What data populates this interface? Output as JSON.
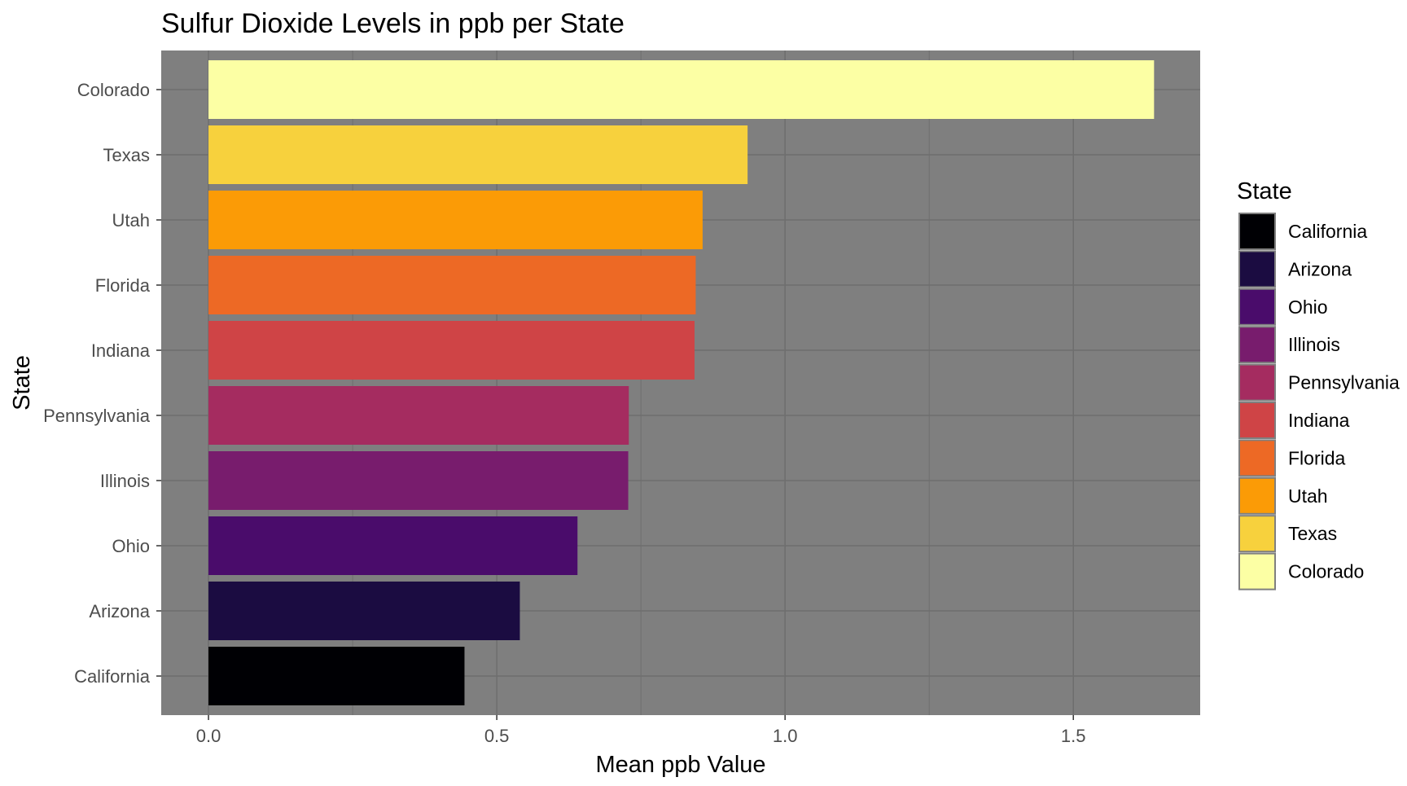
{
  "chart_data": {
    "type": "bar",
    "orientation": "horizontal",
    "title": "Sulfur Dioxide Levels in ppb per State",
    "xlabel": "Mean ppb Value",
    "ylabel": "State",
    "xlim": [
      -0.082,
      1.72
    ],
    "x_ticks": [
      0.0,
      0.5,
      1.0,
      1.5
    ],
    "x_tick_labels": [
      "0.0",
      "0.5",
      "1.0",
      "1.5"
    ],
    "grid": true,
    "panel_background": "#7f7f7f",
    "grid_color": "#6e6e6e",
    "categories": [
      "California",
      "Arizona",
      "Ohio",
      "Illinois",
      "Pennsylvania",
      "Indiana",
      "Florida",
      "Utah",
      "Texas",
      "Colorado"
    ],
    "values": [
      0.444,
      0.54,
      0.64,
      0.728,
      0.729,
      0.843,
      0.845,
      0.857,
      0.935,
      1.64
    ],
    "colors": [
      "#000004",
      "#1b0c41",
      "#4a0c6b",
      "#781c6d",
      "#a52c60",
      "#cf4446",
      "#ed6925",
      "#fb9b06",
      "#f7d13d",
      "#fcffa4"
    ],
    "legend": {
      "title": "State",
      "position": "right",
      "items": [
        "California",
        "Arizona",
        "Ohio",
        "Illinois",
        "Pennsylvania",
        "Indiana",
        "Florida",
        "Utah",
        "Texas",
        "Colorado"
      ]
    }
  }
}
